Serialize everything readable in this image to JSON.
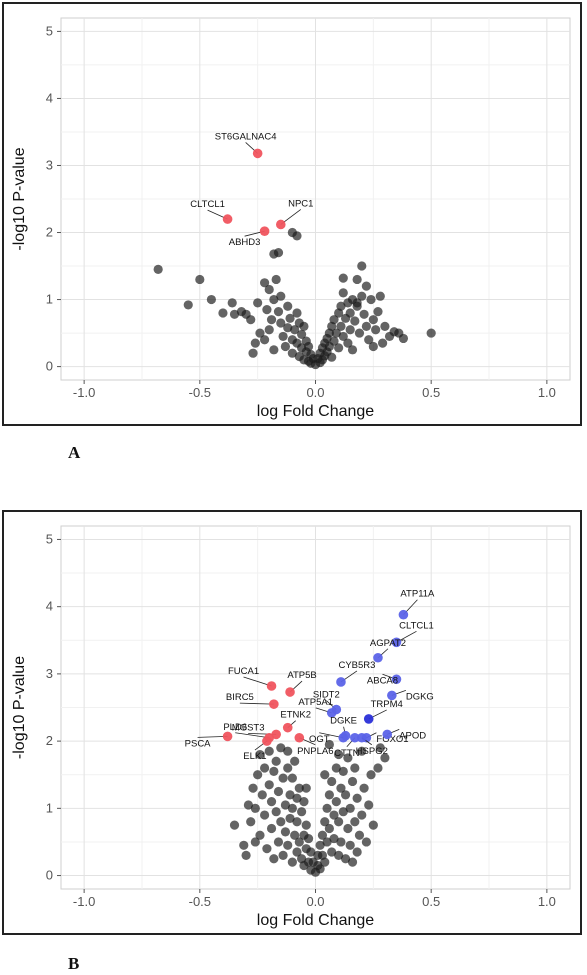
{
  "labels": {
    "panel_a": "A",
    "panel_b": "B"
  },
  "chart_data": [
    {
      "type": "scatter",
      "panel": "A",
      "title": "",
      "xlabel": "log Fold Change",
      "ylabel": "-log10 P-value",
      "xlim": [
        -1.1,
        1.1
      ],
      "ylim": [
        -0.2,
        5.2
      ],
      "x_ticks": [
        "-1.0",
        "-0.5",
        "0.0",
        "0.5",
        "1.0"
      ],
      "y_ticks": [
        "0",
        "1",
        "2",
        "3",
        "4",
        "5"
      ],
      "grid": true,
      "colors": {
        "neutral": "#1a1a1a",
        "down": "#f0545e",
        "up": "#5b63e8"
      },
      "highlighted": [
        {
          "name": "ST6GALNAC4",
          "x": -0.25,
          "y": 3.18,
          "color": "down"
        },
        {
          "name": "CLTCL1",
          "x": -0.38,
          "y": 2.2,
          "color": "down"
        },
        {
          "name": "NPC1",
          "x": -0.15,
          "y": 2.12,
          "color": "down"
        },
        {
          "name": "ABHD3",
          "x": -0.22,
          "y": 2.02,
          "color": "down"
        }
      ],
      "points": [
        [
          -0.68,
          1.45
        ],
        [
          -0.5,
          1.3
        ],
        [
          -0.55,
          0.92
        ],
        [
          -0.45,
          1.0
        ],
        [
          -0.4,
          0.8
        ],
        [
          -0.36,
          0.95
        ],
        [
          -0.35,
          0.78
        ],
        [
          -0.32,
          0.82
        ],
        [
          -0.3,
          0.78
        ],
        [
          -0.28,
          0.7
        ],
        [
          -0.26,
          0.35
        ],
        [
          -0.25,
          0.95
        ],
        [
          -0.22,
          1.25
        ],
        [
          -0.2,
          1.15
        ],
        [
          -0.18,
          1.0
        ],
        [
          -0.17,
          1.3
        ],
        [
          -0.16,
          1.7
        ],
        [
          -0.18,
          1.68
        ],
        [
          -0.1,
          2.0
        ],
        [
          -0.08,
          1.95
        ],
        [
          -0.2,
          0.55
        ],
        [
          -0.22,
          0.4
        ],
        [
          -0.19,
          0.7
        ],
        [
          -0.18,
          0.25
        ],
        [
          -0.16,
          0.82
        ],
        [
          -0.15,
          0.65
        ],
        [
          -0.14,
          0.45
        ],
        [
          -0.13,
          0.3
        ],
        [
          -0.12,
          0.9
        ],
        [
          -0.12,
          0.58
        ],
        [
          -0.11,
          0.72
        ],
        [
          -0.1,
          0.4
        ],
        [
          -0.1,
          0.2
        ],
        [
          -0.09,
          0.55
        ],
        [
          -0.08,
          0.8
        ],
        [
          -0.08,
          0.35
        ],
        [
          -0.07,
          0.65
        ],
        [
          -0.07,
          0.15
        ],
        [
          -0.06,
          0.48
        ],
        [
          -0.06,
          0.28
        ],
        [
          -0.05,
          0.6
        ],
        [
          -0.05,
          0.1
        ],
        [
          -0.04,
          0.38
        ],
        [
          -0.04,
          0.22
        ],
        [
          -0.03,
          0.3
        ],
        [
          -0.03,
          0.08
        ],
        [
          -0.02,
          0.18
        ],
        [
          -0.02,
          0.05
        ],
        [
          -0.01,
          0.12
        ],
        [
          0.0,
          0.03
        ],
        [
          0.01,
          0.12
        ],
        [
          0.02,
          0.06
        ],
        [
          0.02,
          0.2
        ],
        [
          0.03,
          0.28
        ],
        [
          0.03,
          0.1
        ],
        [
          0.04,
          0.35
        ],
        [
          0.04,
          0.16
        ],
        [
          0.05,
          0.42
        ],
        [
          0.05,
          0.22
        ],
        [
          0.06,
          0.5
        ],
        [
          0.06,
          0.3
        ],
        [
          0.07,
          0.6
        ],
        [
          0.07,
          0.14
        ],
        [
          0.08,
          0.7
        ],
        [
          0.08,
          0.38
        ],
        [
          0.09,
          0.5
        ],
        [
          0.1,
          0.8
        ],
        [
          0.1,
          0.28
        ],
        [
          0.11,
          0.9
        ],
        [
          0.11,
          0.6
        ],
        [
          0.12,
          0.45
        ],
        [
          0.12,
          1.1
        ],
        [
          0.13,
          0.72
        ],
        [
          0.14,
          0.95
        ],
        [
          0.14,
          0.35
        ],
        [
          0.15,
          0.55
        ],
        [
          0.16,
          1.0
        ],
        [
          0.16,
          0.25
        ],
        [
          0.17,
          0.68
        ],
        [
          0.18,
          0.9
        ],
        [
          0.18,
          1.3
        ],
        [
          0.19,
          0.5
        ],
        [
          0.2,
          1.5
        ],
        [
          0.2,
          1.05
        ],
        [
          0.21,
          0.78
        ],
        [
          0.22,
          0.6
        ],
        [
          0.22,
          1.2
        ],
        [
          0.23,
          0.4
        ],
        [
          0.24,
          1.0
        ],
        [
          0.25,
          0.7
        ],
        [
          0.26,
          0.55
        ],
        [
          0.27,
          0.82
        ],
        [
          0.28,
          1.05
        ],
        [
          0.29,
          0.35
        ],
        [
          0.3,
          0.6
        ],
        [
          0.32,
          0.45
        ],
        [
          0.34,
          0.52
        ],
        [
          0.36,
          0.5
        ],
        [
          0.38,
          0.42
        ],
        [
          0.5,
          0.5
        ],
        [
          0.18,
          0.95
        ],
        [
          0.15,
          0.8
        ],
        [
          0.12,
          1.32
        ],
        [
          0.25,
          0.3
        ],
        [
          -0.24,
          0.5
        ],
        [
          -0.27,
          0.2
        ],
        [
          -0.21,
          0.85
        ],
        [
          -0.15,
          1.05
        ]
      ]
    },
    {
      "type": "scatter",
      "panel": "B",
      "title": "",
      "xlabel": "log Fold Change",
      "ylabel": "-log10 P-value",
      "xlim": [
        -1.1,
        1.1
      ],
      "ylim": [
        -0.2,
        5.2
      ],
      "x_ticks": [
        "-1.0",
        "-0.5",
        "0.0",
        "0.5",
        "1.0"
      ],
      "y_ticks": [
        "0",
        "1",
        "2",
        "3",
        "4",
        "5"
      ],
      "grid": true,
      "colors": {
        "neutral": "#1a1a1a",
        "down": "#f0545e",
        "up": "#5b63e8",
        "up_dark": "#2a2fd8"
      },
      "highlighted": [
        {
          "name": "ATP11A",
          "x": 0.38,
          "y": 3.88,
          "color": "up"
        },
        {
          "name": "CLTCL1",
          "x": 0.35,
          "y": 3.47,
          "color": "up"
        },
        {
          "name": "AGPAT2",
          "x": 0.27,
          "y": 3.24,
          "color": "up"
        },
        {
          "name": "CYB5R3",
          "x": 0.11,
          "y": 2.88,
          "color": "up"
        },
        {
          "name": "ABCA8",
          "x": 0.35,
          "y": 2.92,
          "color": "up"
        },
        {
          "name": "DGKG",
          "x": 0.33,
          "y": 2.68,
          "color": "up"
        },
        {
          "name": "SIDT2",
          "x": 0.09,
          "y": 2.47,
          "color": "up"
        },
        {
          "name": "TRPM4",
          "x": 0.23,
          "y": 2.33,
          "color": "up_dark"
        },
        {
          "name": "ATP5A1",
          "x": 0.07,
          "y": 2.42,
          "color": "up"
        },
        {
          "name": "FOXO1",
          "x": 0.22,
          "y": 2.05,
          "color": "up"
        },
        {
          "name": "DGKE",
          "x": 0.13,
          "y": 2.08,
          "color": "up"
        },
        {
          "name": "APOD",
          "x": 0.31,
          "y": 2.1,
          "color": "up"
        },
        {
          "name": "OGT",
          "x": 0.12,
          "y": 2.05,
          "color": "up"
        },
        {
          "name": "CTTN",
          "x": 0.17,
          "y": 2.05,
          "color": "up"
        },
        {
          "name": "HSPG2",
          "x": 0.2,
          "y": 2.05,
          "color": "up"
        },
        {
          "name": "FUCA1",
          "x": -0.19,
          "y": 2.82,
          "color": "down"
        },
        {
          "name": "ATP5B",
          "x": -0.11,
          "y": 2.73,
          "color": "down"
        },
        {
          "name": "BIRC5",
          "x": -0.18,
          "y": 2.55,
          "color": "down"
        },
        {
          "name": "MGST3",
          "x": -0.17,
          "y": 2.1,
          "color": "down"
        },
        {
          "name": "ETNK2",
          "x": -0.12,
          "y": 2.2,
          "color": "down"
        },
        {
          "name": "PLD6",
          "x": -0.2,
          "y": 2.05,
          "color": "down"
        },
        {
          "name": "PSCA",
          "x": -0.38,
          "y": 2.07,
          "color": "down"
        },
        {
          "name": "ELK1",
          "x": -0.21,
          "y": 2.0,
          "color": "down"
        },
        {
          "name": "PNPLA6",
          "x": -0.07,
          "y": 2.05,
          "color": "down"
        }
      ],
      "points": [
        [
          -0.3,
          0.3
        ],
        [
          -0.31,
          0.45
        ],
        [
          -0.28,
          0.8
        ],
        [
          -0.27,
          1.3
        ],
        [
          -0.26,
          1.0
        ],
        [
          -0.25,
          1.5
        ],
        [
          -0.24,
          0.6
        ],
        [
          -0.24,
          1.8
        ],
        [
          -0.23,
          1.2
        ],
        [
          -0.22,
          0.9
        ],
        [
          -0.22,
          1.6
        ],
        [
          -0.21,
          0.4
        ],
        [
          -0.2,
          1.35
        ],
        [
          -0.2,
          1.85
        ],
        [
          -0.19,
          0.7
        ],
        [
          -0.19,
          1.1
        ],
        [
          -0.18,
          1.55
        ],
        [
          -0.18,
          0.25
        ],
        [
          -0.17,
          0.95
        ],
        [
          -0.17,
          1.7
        ],
        [
          -0.16,
          0.5
        ],
        [
          -0.16,
          1.25
        ],
        [
          -0.15,
          0.8
        ],
        [
          -0.15,
          1.9
        ],
        [
          -0.14,
          1.45
        ],
        [
          -0.14,
          0.3
        ],
        [
          -0.13,
          1.05
        ],
        [
          -0.13,
          0.65
        ],
        [
          -0.12,
          1.6
        ],
        [
          -0.12,
          0.45
        ],
        [
          -0.11,
          1.2
        ],
        [
          -0.11,
          0.85
        ],
        [
          -0.1,
          0.2
        ],
        [
          -0.1,
          1.45
        ],
        [
          -0.1,
          1.0
        ],
        [
          -0.09,
          0.6
        ],
        [
          -0.09,
          1.7
        ],
        [
          -0.08,
          0.35
        ],
        [
          -0.08,
          1.15
        ],
        [
          -0.08,
          0.8
        ],
        [
          -0.07,
          0.5
        ],
        [
          -0.07,
          1.3
        ],
        [
          -0.06,
          0.25
        ],
        [
          -0.06,
          0.95
        ],
        [
          -0.05,
          0.6
        ],
        [
          -0.05,
          1.1
        ],
        [
          -0.05,
          0.15
        ],
        [
          -0.04,
          0.75
        ],
        [
          -0.04,
          0.4
        ],
        [
          -0.03,
          0.55
        ],
        [
          -0.03,
          0.2
        ],
        [
          -0.02,
          0.35
        ],
        [
          -0.02,
          0.08
        ],
        [
          -0.01,
          0.2
        ],
        [
          0.0,
          0.05
        ],
        [
          0.01,
          0.15
        ],
        [
          0.01,
          0.3
        ],
        [
          0.02,
          0.45
        ],
        [
          0.02,
          0.1
        ],
        [
          0.03,
          0.6
        ],
        [
          0.03,
          0.3
        ],
        [
          0.04,
          0.8
        ],
        [
          0.04,
          0.2
        ],
        [
          0.05,
          1.0
        ],
        [
          0.05,
          0.5
        ],
        [
          0.06,
          1.2
        ],
        [
          0.06,
          0.7
        ],
        [
          0.07,
          0.35
        ],
        [
          0.07,
          1.4
        ],
        [
          0.08,
          0.9
        ],
        [
          0.08,
          0.55
        ],
        [
          0.09,
          1.6
        ],
        [
          0.09,
          1.1
        ],
        [
          0.1,
          0.3
        ],
        [
          0.1,
          1.8
        ],
        [
          0.1,
          0.8
        ],
        [
          0.11,
          1.3
        ],
        [
          0.11,
          0.5
        ],
        [
          0.12,
          1.55
        ],
        [
          0.12,
          0.95
        ],
        [
          0.13,
          0.25
        ],
        [
          0.13,
          1.2
        ],
        [
          0.14,
          0.7
        ],
        [
          0.14,
          1.75
        ],
        [
          0.15,
          1.0
        ],
        [
          0.15,
          0.45
        ],
        [
          0.16,
          1.4
        ],
        [
          0.17,
          0.8
        ],
        [
          0.17,
          1.6
        ],
        [
          0.18,
          0.35
        ],
        [
          0.18,
          1.15
        ],
        [
          0.19,
          0.6
        ],
        [
          0.2,
          1.85
        ],
        [
          0.2,
          0.9
        ],
        [
          0.21,
          1.3
        ],
        [
          0.22,
          0.5
        ],
        [
          0.23,
          1.05
        ],
        [
          0.24,
          1.5
        ],
        [
          0.25,
          0.75
        ],
        [
          0.27,
          1.6
        ],
        [
          0.28,
          1.9
        ],
        [
          0.3,
          1.75
        ],
        [
          -0.35,
          0.75
        ],
        [
          -0.29,
          1.05
        ],
        [
          -0.26,
          0.5
        ],
        [
          0.16,
          0.2
        ],
        [
          -0.12,
          1.85
        ],
        [
          0.06,
          1.95
        ],
        [
          -0.04,
          1.3
        ],
        [
          0.04,
          1.5
        ]
      ]
    }
  ]
}
